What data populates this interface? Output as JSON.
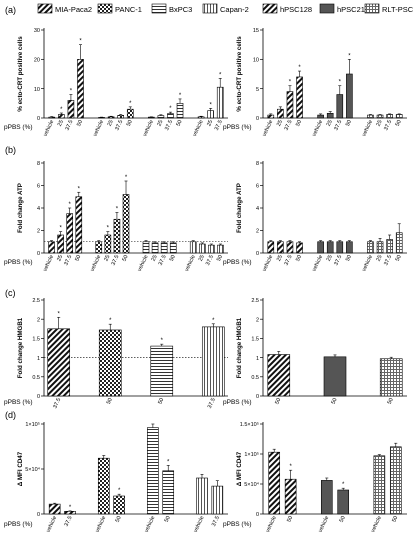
{
  "x_axis_label": "pPBS (%)",
  "panel_letters": [
    "(a)",
    "(b)",
    "(c)",
    "(d)"
  ],
  "legend_left": [
    "MIA-Paca2",
    "PANC-1",
    "BxPC3",
    "Capan-2"
  ],
  "legend_right": [
    "hPSC128",
    "hPSC21",
    "RLT-PSC"
  ],
  "chart_data": [
    {
      "id": "a-left",
      "panel": "(a)",
      "type": "bar",
      "ylabel": "% ecto-CRT positive cells",
      "ylim": [
        0,
        30
      ],
      "yticks": [
        0,
        10,
        20,
        30
      ],
      "categories": [
        "vehicle",
        "25",
        "37.5",
        "50",
        "vehicle",
        "25",
        "37.5",
        "50",
        "vehicle",
        "25",
        "37.5",
        "50",
        "vehicle",
        "25",
        "37.5"
      ],
      "groups": [
        {
          "name": "MIA-Paca2",
          "pattern": "diag",
          "values": [
            0.3,
            1.2,
            6,
            20
          ],
          "err": [
            0.2,
            0.5,
            2,
            5
          ],
          "sig": [
            false,
            true,
            true,
            true
          ]
        },
        {
          "name": "PANC-1",
          "pattern": "check",
          "values": [
            0.2,
            0.4,
            0.9,
            3
          ],
          "err": [
            0.1,
            0.2,
            0.3,
            0.8
          ],
          "sig": [
            false,
            false,
            false,
            true
          ]
        },
        {
          "name": "BxPC3",
          "pattern": "hlines",
          "values": [
            0.3,
            0.8,
            1.5,
            5
          ],
          "err": [
            0.1,
            0.3,
            0.5,
            1.5
          ],
          "sig": [
            false,
            false,
            true,
            true
          ]
        },
        {
          "name": "Capan-2",
          "pattern": "vlines",
          "values": [
            0.4,
            2.5,
            10.5
          ],
          "err": [
            0.2,
            0.8,
            3
          ],
          "sig": [
            false,
            true,
            true
          ]
        }
      ]
    },
    {
      "id": "a-right",
      "panel": "(a)",
      "type": "bar",
      "ylabel": "% ecto-CRT positive cells",
      "ylim": [
        0,
        15
      ],
      "yticks": [
        0,
        5,
        10,
        15
      ],
      "categories": [
        "vehicle",
        "25",
        "37.5",
        "50",
        "vehicle",
        "25",
        "37.5",
        "50",
        "vehicle",
        "25",
        "37.5",
        "50"
      ],
      "groups": [
        {
          "name": "hPSC128",
          "pattern": "diag",
          "values": [
            0.5,
            1.5,
            4.5,
            7
          ],
          "err": [
            0.2,
            0.4,
            1,
            1
          ],
          "sig": [
            false,
            false,
            true,
            true
          ]
        },
        {
          "name": "hPSC21",
          "pattern": "solid",
          "values": [
            0.5,
            0.8,
            4,
            7.5
          ],
          "err": [
            0.2,
            0.3,
            1.5,
            2.5
          ],
          "sig": [
            false,
            false,
            true,
            true
          ]
        },
        {
          "name": "RLT-PSC",
          "pattern": "grid",
          "values": [
            0.5,
            0.5,
            0.6,
            0.6
          ],
          "err": [
            0.1,
            0.1,
            0.1,
            0.1
          ],
          "sig": [
            false,
            false,
            false,
            false
          ]
        }
      ]
    },
    {
      "id": "b-left",
      "panel": "(b)",
      "type": "bar",
      "ylabel": "Fold change ATP",
      "ylim": [
        0,
        8
      ],
      "yticks": [
        0,
        2,
        4,
        6,
        8
      ],
      "refline": 1,
      "categories": [
        "vehicle",
        "25",
        "37.5",
        "50",
        "vehicle",
        "25",
        "37.5",
        "50",
        "vehicle",
        "25",
        "37.5",
        "50",
        "vehicle",
        "25",
        "37.5",
        "50"
      ],
      "groups": [
        {
          "name": "MIA-Paca2",
          "pattern": "diag",
          "values": [
            1,
            1.6,
            3.5,
            5
          ],
          "err": [
            0.1,
            0.3,
            0.5,
            0.4
          ],
          "sig": [
            false,
            true,
            true,
            true
          ]
        },
        {
          "name": "PANC-1",
          "pattern": "check",
          "values": [
            1,
            1.6,
            3,
            5.2
          ],
          "err": [
            0.1,
            0.3,
            0.6,
            1.2
          ],
          "sig": [
            false,
            true,
            true,
            true
          ]
        },
        {
          "name": "BxPC3",
          "pattern": "hlines",
          "values": [
            1,
            0.9,
            0.9,
            0.9
          ],
          "err": [
            0.1,
            0.1,
            0.1,
            0.1
          ],
          "sig": [
            false,
            false,
            false,
            false
          ]
        },
        {
          "name": "Capan-2",
          "pattern": "vlines",
          "values": [
            1,
            0.8,
            0.7,
            0.7
          ],
          "err": [
            0.1,
            0.1,
            0.1,
            0.1
          ],
          "sig": [
            false,
            false,
            false,
            false
          ]
        }
      ]
    },
    {
      "id": "b-right",
      "panel": "(b)",
      "type": "bar",
      "ylabel": "Fold change ATP",
      "ylim": [
        0,
        8
      ],
      "yticks": [
        0,
        2,
        4,
        6,
        8
      ],
      "categories": [
        "vehicle",
        "25",
        "37.5",
        "50",
        "vehicle",
        "25",
        "37.5",
        "50",
        "vehicle",
        "25",
        "37.5",
        "50"
      ],
      "groups": [
        {
          "name": "hPSC128",
          "pattern": "diag",
          "values": [
            1,
            1,
            1,
            0.9
          ],
          "err": [
            0.1,
            0.1,
            0.1,
            0.1
          ],
          "sig": [
            false,
            false,
            false,
            false
          ]
        },
        {
          "name": "hPSC21",
          "pattern": "solid",
          "values": [
            1,
            1,
            1,
            1
          ],
          "err": [
            0.1,
            0.1,
            0.1,
            0.1
          ],
          "sig": [
            false,
            false,
            false,
            false
          ]
        },
        {
          "name": "RLT-PSC",
          "pattern": "grid",
          "values": [
            1,
            1,
            1.2,
            1.8
          ],
          "err": [
            0.1,
            0.3,
            0.4,
            0.8
          ],
          "sig": [
            false,
            false,
            false,
            false
          ]
        }
      ]
    },
    {
      "id": "c-left",
      "panel": "(c)",
      "type": "bar",
      "ylabel": "Fold change HMGB1",
      "ylim": [
        0,
        2.5
      ],
      "yticks": [
        0,
        0.5,
        1,
        1.5,
        2,
        2.5
      ],
      "refline": 1,
      "categories": [
        "37.5",
        "50",
        "50",
        "37.5"
      ],
      "groups": [
        {
          "name": "MIA-Paca2",
          "pattern": "diag",
          "values": [
            1.75
          ],
          "err": [
            0.3
          ],
          "sig": [
            true
          ]
        },
        {
          "name": "PANC-1",
          "pattern": "check",
          "values": [
            1.72
          ],
          "err": [
            0.15
          ],
          "sig": [
            true
          ]
        },
        {
          "name": "BxPC3",
          "pattern": "hlines",
          "values": [
            1.3
          ],
          "err": [
            0.05
          ],
          "sig": [
            true
          ]
        },
        {
          "name": "Capan-2",
          "pattern": "vlines",
          "values": [
            1.8
          ],
          "err": [
            0.08
          ],
          "sig": [
            true
          ]
        }
      ]
    },
    {
      "id": "c-right",
      "panel": "(c)",
      "type": "bar",
      "ylabel": "Fold change HMGB1",
      "ylim": [
        0,
        2.5
      ],
      "yticks": [
        0,
        0.5,
        1,
        1.5,
        2,
        2.5
      ],
      "categories": [
        "50",
        "50",
        "50"
      ],
      "groups": [
        {
          "name": "hPSC128",
          "pattern": "diag",
          "values": [
            1.08
          ],
          "err": [
            0.08
          ],
          "sig": [
            false
          ]
        },
        {
          "name": "hPSC21",
          "pattern": "solid",
          "values": [
            1.02
          ],
          "err": [
            0.05
          ],
          "sig": [
            false
          ]
        },
        {
          "name": "RLT-PSC",
          "pattern": "grid",
          "values": [
            0.97
          ],
          "err": [
            0.04
          ],
          "sig": [
            false
          ]
        }
      ]
    },
    {
      "id": "d-left",
      "panel": "(d)",
      "type": "bar",
      "ylabel": "Δ MFI CD47",
      "ylim": [
        0,
        100000
      ],
      "yticks": [
        0,
        50000,
        100000
      ],
      "yticklabels": [
        "0",
        "5×10⁴",
        "1×10⁵"
      ],
      "categories": [
        "vehicle",
        "37.5",
        "vehicle",
        "50",
        "vehicle",
        "50",
        "vehicle",
        "37.5"
      ],
      "groups": [
        {
          "name": "MIA-Paca2",
          "pattern": "diag",
          "values": [
            11000,
            3000
          ],
          "err": [
            1000,
            500
          ],
          "sig": [
            false,
            true
          ]
        },
        {
          "name": "PANC-1",
          "pattern": "check",
          "values": [
            62000,
            20000
          ],
          "err": [
            3000,
            2000
          ],
          "sig": [
            false,
            true
          ]
        },
        {
          "name": "BxPC3",
          "pattern": "hlines",
          "values": [
            96000,
            48000
          ],
          "err": [
            4000,
            6000
          ],
          "sig": [
            false,
            true
          ]
        },
        {
          "name": "Capan-2",
          "pattern": "vlines",
          "values": [
            40000,
            31000
          ],
          "err": [
            4000,
            6000
          ],
          "sig": [
            false,
            false
          ]
        }
      ]
    },
    {
      "id": "d-right",
      "panel": "(d)",
      "type": "bar",
      "ylabel": "Δ MFI CD47",
      "ylim": [
        0,
        150000
      ],
      "yticks": [
        0,
        50000,
        100000,
        150000
      ],
      "yticklabels": [
        "0",
        "5×10⁴",
        "1×10⁵",
        "1.5×10⁵"
      ],
      "categories": [
        "vehicle",
        "50",
        "vehicle",
        "50",
        "vehicle",
        "50"
      ],
      "groups": [
        {
          "name": "hPSC128",
          "pattern": "diag",
          "values": [
            103000,
            58000
          ],
          "err": [
            5000,
            15000
          ],
          "sig": [
            false,
            true
          ]
        },
        {
          "name": "hPSC21",
          "pattern": "solid",
          "values": [
            56000,
            40000
          ],
          "err": [
            4000,
            3000
          ],
          "sig": [
            false,
            true
          ]
        },
        {
          "name": "RLT-PSC",
          "pattern": "grid",
          "values": [
            97000,
            112000
          ],
          "err": [
            2000,
            6000
          ],
          "sig": [
            false,
            false
          ]
        }
      ]
    }
  ]
}
